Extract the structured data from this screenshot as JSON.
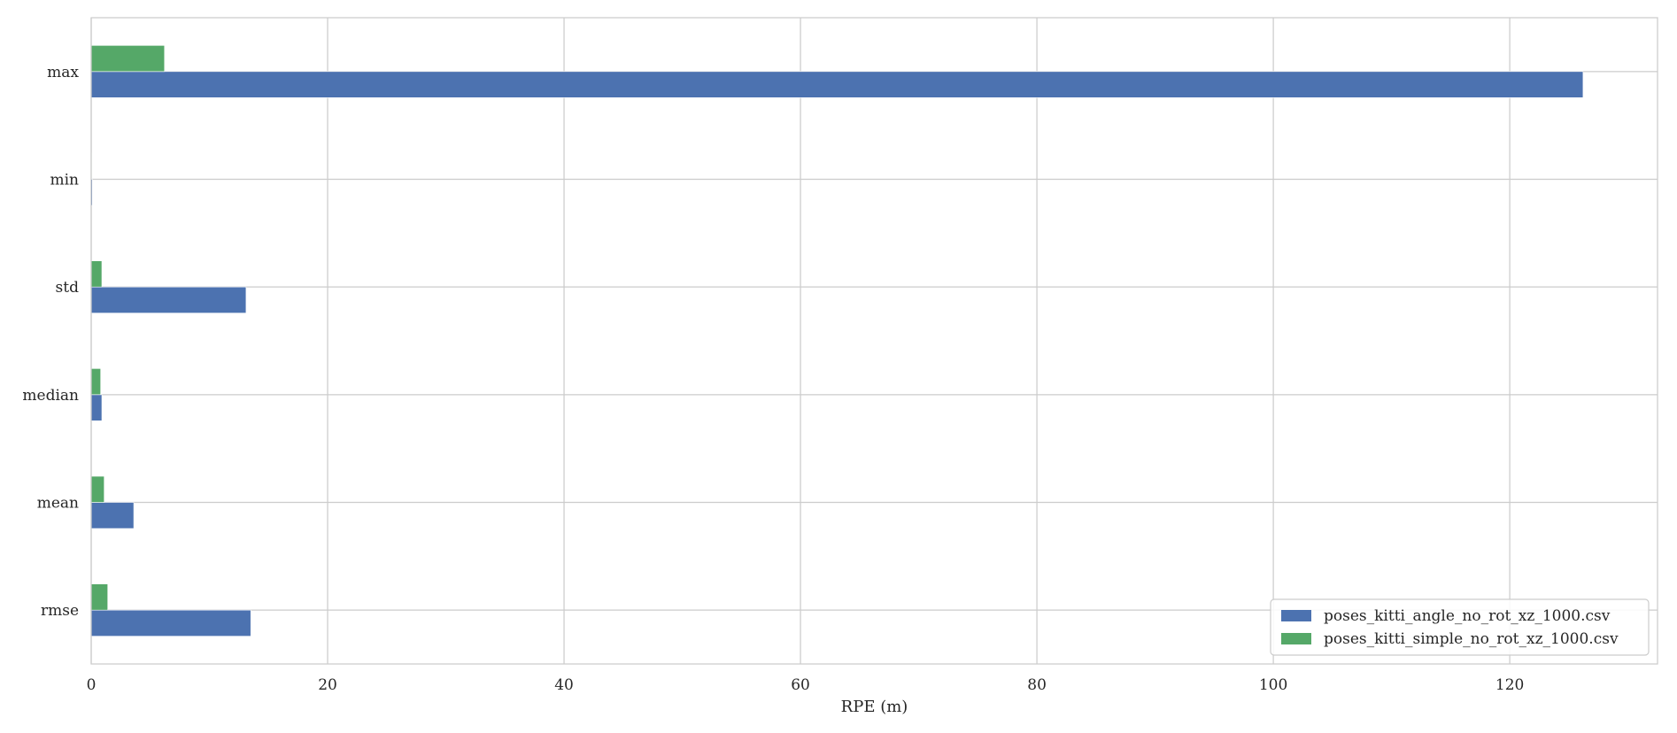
{
  "chart_data": {
    "type": "bar",
    "orientation": "horizontal",
    "categories": [
      "rmse",
      "mean",
      "median",
      "std",
      "min",
      "max"
    ],
    "series": [
      {
        "name": "poses_kitti_angle_no_rot_xz_1000.csv",
        "color": "#4C72B0",
        "values": [
          13.5,
          3.6,
          0.9,
          13.1,
          0.1,
          126.2
        ]
      },
      {
        "name": "poses_kitti_simple_no_rot_xz_1000.csv",
        "color": "#55A868",
        "values": [
          1.4,
          1.1,
          0.8,
          0.9,
          0.0,
          6.2
        ]
      }
    ],
    "xlabel": "RPE (m)",
    "ylabel": "",
    "title": "",
    "xlim": [
      0,
      132.5
    ],
    "xticks": [
      0,
      20,
      40,
      60,
      80,
      100,
      120
    ],
    "grid": true,
    "legend_position": "bottom-right"
  }
}
